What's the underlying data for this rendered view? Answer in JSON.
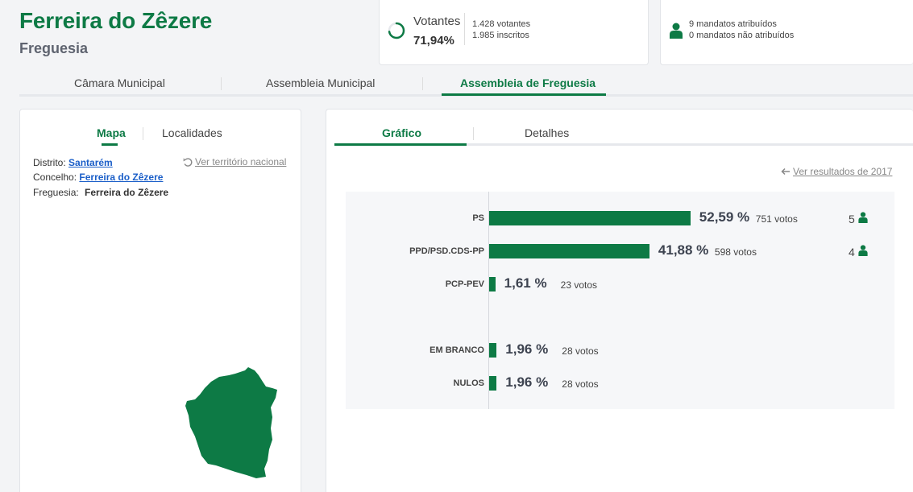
{
  "header": {
    "title": "Ferreira do Zêzere",
    "subtitle": "Freguesia"
  },
  "votantes": {
    "label": "Votantes",
    "percent": "71,94%",
    "percent_value": 71.94,
    "votantes_text": "1.428 votantes",
    "inscritos_text": "1.985 inscritos"
  },
  "mandatos": {
    "atribuidos": "9 mandatos atribuídos",
    "nao_atribuidos": "0 mandatos não atribuídos"
  },
  "main_tabs": [
    {
      "label": "Câmara Municipal"
    },
    {
      "label": "Assembleia Municipal"
    },
    {
      "label": "Assembleia de Freguesia"
    }
  ],
  "left_panel": {
    "tabs": [
      {
        "label": "Mapa"
      },
      {
        "label": "Localidades"
      }
    ],
    "distrito_label": "Distrito:",
    "distrito_value": "Santarém",
    "concelho_label": "Concelho:",
    "concelho_value": "Ferreira do Zêzere",
    "freguesia_label": "Freguesia:",
    "freguesia_value": "Ferreira do Zêzere",
    "ver_territorio": "Ver território nacional"
  },
  "right_panel": {
    "tabs": [
      {
        "label": "Gráfico"
      },
      {
        "label": "Detalhes"
      }
    ],
    "ver_resultados": "Ver resultados de 2017"
  },
  "colors": {
    "brand_green": "#0d7a45",
    "link_blue": "#1a5ec8"
  },
  "icons": [
    "undo-icon",
    "arrow-left-icon",
    "person-icon",
    "progress-ring-icon"
  ],
  "chart_data": {
    "type": "bar",
    "orientation": "horizontal",
    "categories": [
      "PS",
      "PPD/PSD.CDS-PP",
      "PCP-PEV",
      "EM BRANCO",
      "NULOS"
    ],
    "values": [
      52.59,
      41.88,
      1.61,
      1.96,
      1.96
    ],
    "labels": [
      {
        "party": "PS",
        "pct": "52,59 %",
        "votos": "751 votos",
        "seats": "5"
      },
      {
        "party": "PPD/PSD.CDS-PP",
        "pct": "41,88 %",
        "votos": "598 votos",
        "seats": "4"
      },
      {
        "party": "PCP-PEV",
        "pct": "1,61 %",
        "votos": "23 votos",
        "seats": ""
      },
      {
        "party": "EM BRANCO",
        "pct": "1,96 %",
        "votos": "28 votos",
        "seats": ""
      },
      {
        "party": "NULOS",
        "pct": "1,96 %",
        "votos": "28 votos",
        "seats": ""
      }
    ]
  }
}
